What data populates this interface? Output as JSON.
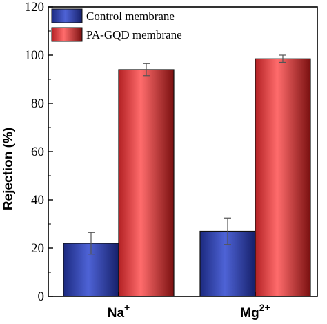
{
  "chart_data": {
    "type": "bar",
    "categories": [
      "Na",
      "Mg"
    ],
    "category_superscripts": [
      "+",
      "2+"
    ],
    "series": [
      {
        "name": "Control membrane",
        "values": [
          22,
          27
        ],
        "errors": [
          4.5,
          5.5
        ],
        "color": "#2b3a9e"
      },
      {
        "name": "PA-GQD membrane",
        "values": [
          94,
          98.5
        ],
        "errors": [
          2.5,
          1.5
        ],
        "color": "#e8484a"
      }
    ],
    "xlabel": "",
    "ylabel": "Rejection (%)",
    "ylim": [
      0,
      120
    ],
    "yticks": [
      "0",
      "20",
      "40",
      "60",
      "80",
      "100",
      "120"
    ],
    "grid": false,
    "legend_position": "top-left"
  }
}
